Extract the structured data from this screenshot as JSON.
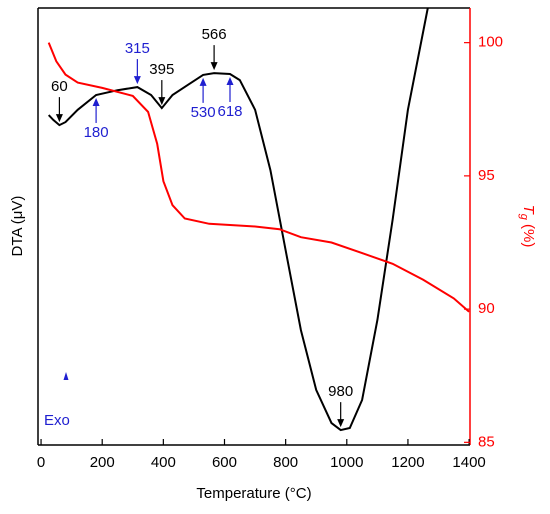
{
  "chart_data": {
    "type": "line",
    "xlabel": "Temperature (°C)",
    "ylabel": "DTA (μV)",
    "y2label": [
      "T",
      "g",
      " (%)"
    ],
    "xlim": [
      -10,
      1403
    ],
    "xticks": [
      0,
      200,
      400,
      600,
      800,
      1000,
      1200,
      1400
    ],
    "ylim": [
      0,
      100
    ],
    "y2lim": [
      84.9,
      101.3
    ],
    "y2ticks": [
      85,
      90,
      95,
      100
    ],
    "axis_color_y2": "#ff0000",
    "series": [
      {
        "color": "#000000",
        "axis": "y",
        "x": [
          25,
          40,
          60,
          80,
          120,
          180,
          250,
          315,
          360,
          395,
          430,
          480,
          530,
          566,
          618,
          650,
          700,
          750,
          800,
          850,
          900,
          950,
          980,
          1010,
          1050,
          1100,
          1150,
          1200,
          1265
        ],
        "values": [
          75.5,
          74.4,
          73.2,
          73.9,
          76.7,
          80.1,
          81.2,
          81.9,
          80.1,
          77.1,
          80.1,
          82.4,
          84.7,
          85.1,
          84.9,
          83.5,
          76.7,
          62.9,
          44.6,
          26.3,
          12.6,
          5.0,
          3.4,
          3.9,
          10.3,
          28.6,
          51.5,
          76.7,
          100
        ]
      },
      {
        "color": "#ff0000",
        "axis": "y2",
        "x": [
          25,
          50,
          80,
          120,
          200,
          300,
          350,
          380,
          400,
          430,
          470,
          550,
          700,
          780,
          850,
          950,
          1050,
          1150,
          1250,
          1350,
          1400
        ],
        "values": [
          100.0,
          99.3,
          98.8,
          98.5,
          98.3,
          98.0,
          97.4,
          96.2,
          94.8,
          93.9,
          93.4,
          93.2,
          93.1,
          93.0,
          92.7,
          92.5,
          92.1,
          91.7,
          91.1,
          90.4,
          89.9
        ]
      }
    ],
    "annotations": [
      {
        "value": 60,
        "color": "#000000",
        "side": "above"
      },
      {
        "value": 180,
        "color": "#1f1fd0",
        "side": "below"
      },
      {
        "value": 315,
        "color": "#1f1fd0",
        "side": "above"
      },
      {
        "value": 395,
        "color": "#000000",
        "side": "above"
      },
      {
        "value": 530,
        "color": "#1f1fd0",
        "side": "below"
      },
      {
        "value": 566,
        "color": "#000000",
        "side": "above"
      },
      {
        "value": 618,
        "color": "#1f1fd0",
        "side": "below"
      },
      {
        "value": 980,
        "color": "#000000",
        "side": "above"
      }
    ],
    "exo_label": "Exo"
  }
}
